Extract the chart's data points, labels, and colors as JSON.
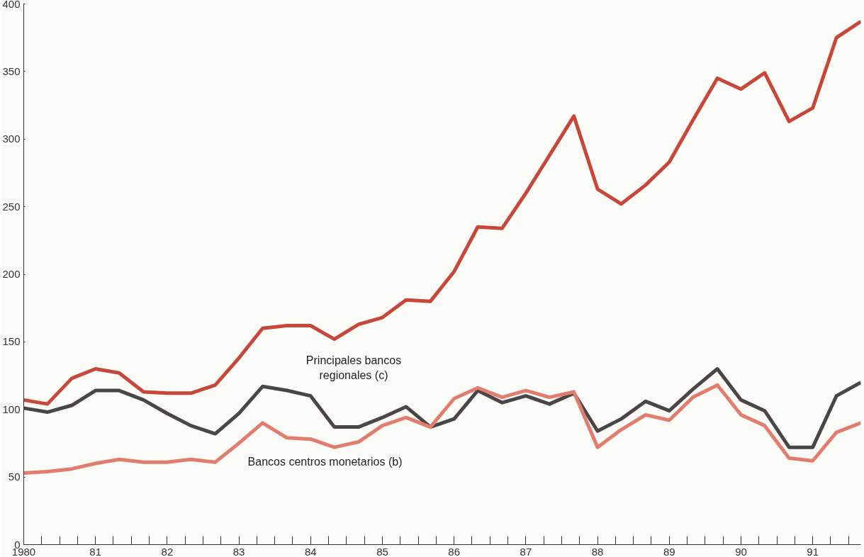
{
  "chart_data": {
    "type": "line",
    "x": [
      1980.0,
      1980.33,
      1980.67,
      1981.0,
      1981.33,
      1981.67,
      1982.0,
      1982.33,
      1982.67,
      1983.0,
      1983.33,
      1983.67,
      1984.0,
      1984.33,
      1984.67,
      1985.0,
      1985.33,
      1985.67,
      1986.0,
      1986.33,
      1986.67,
      1987.0,
      1987.33,
      1987.67,
      1988.0,
      1988.33,
      1988.67,
      1989.0,
      1989.33,
      1989.67,
      1990.0,
      1990.33,
      1990.67,
      1991.0,
      1991.33,
      1991.67
    ],
    "series": [
      {
        "color": "#c8463a",
        "values": [
          107,
          104,
          123,
          130,
          127,
          113,
          112,
          112,
          118,
          138,
          160,
          162,
          162,
          152,
          163,
          168,
          181,
          180,
          202,
          235,
          234,
          260,
          288,
          317,
          263,
          252,
          266,
          283,
          314,
          345,
          337,
          349,
          313,
          323,
          375,
          387
        ]
      },
      {
        "name": "Principales bancos\nregionales (c)",
        "color": "#4a4646",
        "values": [
          101,
          98,
          103,
          114,
          114,
          107,
          97,
          88,
          82,
          97,
          117,
          114,
          110,
          87,
          87,
          94,
          102,
          87,
          93,
          114,
          105,
          110,
          104,
          112,
          84,
          93,
          106,
          99,
          115,
          130,
          107,
          99,
          72,
          72,
          110,
          120
        ]
      },
      {
        "name": "Bancos centros monetarios (b)",
        "color": "#e27c6c",
        "values": [
          53,
          54,
          56,
          60,
          63,
          61,
          61,
          63,
          61,
          75,
          90,
          79,
          78,
          72,
          76,
          88,
          94,
          87,
          108,
          116,
          109,
          114,
          109,
          113,
          72,
          85,
          96,
          92,
          109,
          118,
          96,
          88,
          64,
          62,
          83,
          90
        ]
      }
    ],
    "xlim": [
      1980.0,
      1991.67
    ],
    "xticks": [
      {
        "value": 1980,
        "label": "1980"
      },
      {
        "value": 1980.25,
        "label": null
      },
      {
        "value": 1980.5,
        "label": null
      },
      {
        "value": 1980.75,
        "label": null
      },
      {
        "value": 1981,
        "label": "81"
      },
      {
        "value": 1981.25,
        "label": null
      },
      {
        "value": 1981.5,
        "label": null
      },
      {
        "value": 1981.75,
        "label": null
      },
      {
        "value": 1982,
        "label": "82"
      },
      {
        "value": 1982.25,
        "label": null
      },
      {
        "value": 1982.5,
        "label": null
      },
      {
        "value": 1982.75,
        "label": null
      },
      {
        "value": 1983,
        "label": "83"
      },
      {
        "value": 1983.25,
        "label": null
      },
      {
        "value": 1983.5,
        "label": null
      },
      {
        "value": 1983.75,
        "label": null
      },
      {
        "value": 1984,
        "label": "84"
      },
      {
        "value": 1984.25,
        "label": null
      },
      {
        "value": 1984.5,
        "label": null
      },
      {
        "value": 1984.75,
        "label": null
      },
      {
        "value": 1985,
        "label": "85"
      },
      {
        "value": 1985.25,
        "label": null
      },
      {
        "value": 1985.5,
        "label": null
      },
      {
        "value": 1985.75,
        "label": null
      },
      {
        "value": 1986,
        "label": "86"
      },
      {
        "value": 1986.25,
        "label": null
      },
      {
        "value": 1986.5,
        "label": null
      },
      {
        "value": 1986.75,
        "label": null
      },
      {
        "value": 1987,
        "label": "87"
      },
      {
        "value": 1987.25,
        "label": null
      },
      {
        "value": 1987.5,
        "label": null
      },
      {
        "value": 1987.75,
        "label": null
      },
      {
        "value": 1988,
        "label": "88"
      },
      {
        "value": 1988.25,
        "label": null
      },
      {
        "value": 1988.5,
        "label": null
      },
      {
        "value": 1988.75,
        "label": null
      },
      {
        "value": 1989,
        "label": "89"
      },
      {
        "value": 1989.25,
        "label": null
      },
      {
        "value": 1989.5,
        "label": null
      },
      {
        "value": 1989.75,
        "label": null
      },
      {
        "value": 1990,
        "label": "90"
      },
      {
        "value": 1990.25,
        "label": null
      },
      {
        "value": 1990.5,
        "label": null
      },
      {
        "value": 1990.75,
        "label": null
      },
      {
        "value": 1991,
        "label": "91"
      },
      {
        "value": 1991.25,
        "label": null
      },
      {
        "value": 1991.5,
        "label": null
      }
    ],
    "ylim": [
      0,
      400
    ],
    "yticks": [
      0,
      50,
      100,
      150,
      200,
      250,
      300,
      350,
      400
    ],
    "grid": false,
    "marker": "none",
    "line_style": "solid"
  }
}
